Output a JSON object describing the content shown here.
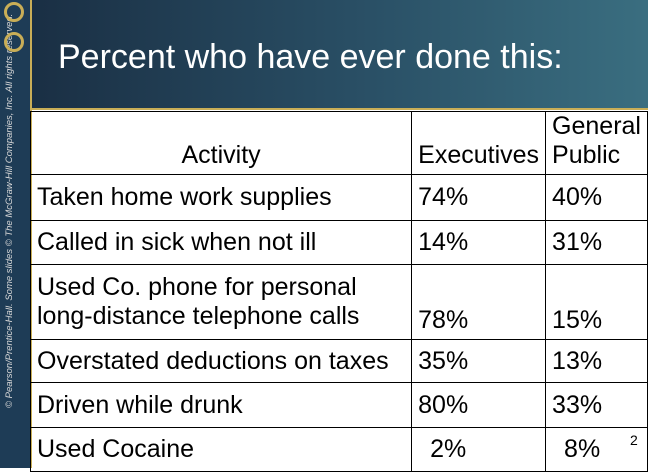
{
  "sidebar": {
    "copyright": "© Pearson/Prentice-Hall. Some slides © The McGraw-Hill Companies, Inc. All rights reserved."
  },
  "header": {
    "title": "Percent who have ever done this:"
  },
  "table": {
    "columns": {
      "activity": "Activity",
      "executives": "Executives",
      "general_public_line1": "General",
      "general_public_line2": "Public"
    },
    "rows": [
      {
        "activity": "Taken home work supplies",
        "executives": "74%",
        "general_public": "40%"
      },
      {
        "activity": "Called in sick when not ill",
        "executives": "14%",
        "general_public": "31%"
      },
      {
        "activity_line1": "Used Co. phone for personal",
        "activity_line2": "long-distance telephone calls",
        "executives": "78%",
        "general_public": "15%"
      },
      {
        "activity": "Overstated deductions on taxes",
        "executives": "35%",
        "general_public": "13%"
      },
      {
        "activity": "Driven while drunk",
        "executives": "80%",
        "general_public": "33%"
      },
      {
        "activity": "Used Cocaine",
        "executives": "2%",
        "general_public": "8%"
      }
    ]
  },
  "footer": {
    "page_number": "2"
  }
}
